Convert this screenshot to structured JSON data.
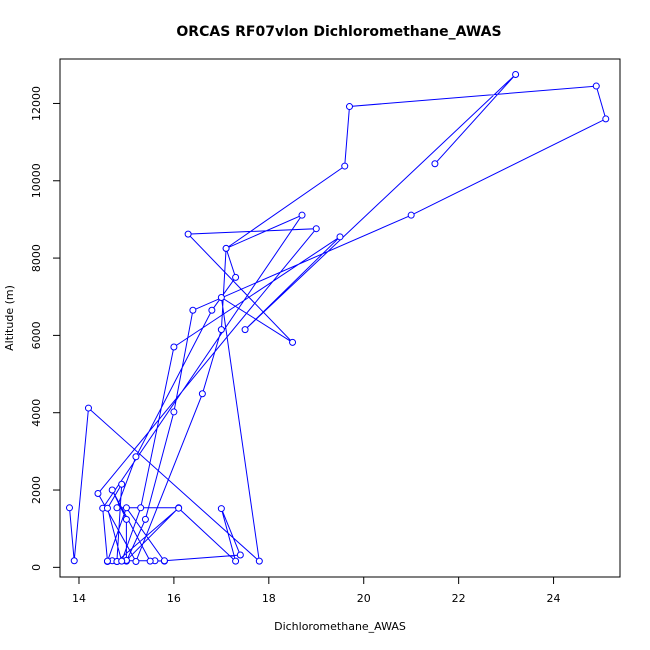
{
  "chart_data": {
    "type": "line",
    "title": "ORCAS RF07vlon Dichloromethane_AWAS",
    "xlabel": "Dichloromethane_AWAS",
    "ylabel": "Altitude (m)",
    "xlim": [
      13.6,
      25.4
    ],
    "ylim": [
      -250,
      13150
    ],
    "xticks": [
      14,
      16,
      18,
      20,
      22,
      24
    ],
    "yticks": [
      0,
      2000,
      4000,
      6000,
      8000,
      10000,
      12000
    ],
    "grid": false,
    "legend": "none",
    "series": [
      {
        "color": "#0000ff",
        "marker": "open-circle",
        "x": [
          13.8,
          13.9,
          14.2,
          17.8,
          17.0,
          18.5,
          16.3,
          19.0,
          14.4,
          15.2,
          16.6,
          17.0,
          17.1,
          18.7,
          14.5,
          14.6,
          14.7,
          15.6,
          15.8,
          15.0,
          14.6,
          14.8,
          15.0,
          15.4,
          16.0,
          16.4,
          21.0,
          25.1,
          24.9,
          19.7,
          19.6,
          17.1,
          17.3,
          16.8,
          15.2,
          14.8,
          16.1,
          15.0,
          15.0,
          14.7,
          15.5,
          15.8,
          17.4,
          17.0,
          17.3,
          16.1,
          14.8,
          14.9,
          14.6,
          14.9,
          15.3,
          16.0,
          19.5,
          17.5,
          23.2,
          21.5
        ],
        "y": [
          1540,
          170,
          4120,
          160,
          6980,
          5820,
          8620,
          8760,
          1910,
          150,
          4490,
          6150,
          8250,
          9110,
          1530,
          150,
          170,
          170,
          160,
          1540,
          160,
          150,
          160,
          1240,
          4020,
          6650,
          9110,
          11600,
          12450,
          11920,
          10380,
          8250,
          7500,
          6650,
          2860,
          1540,
          1540,
          180,
          1240,
          2000,
          160,
          170,
          320,
          1520,
          160,
          1530,
          150,
          2150,
          1530,
          160,
          1540,
          5700,
          8550,
          6150,
          12750,
          10440
        ]
      }
    ]
  }
}
